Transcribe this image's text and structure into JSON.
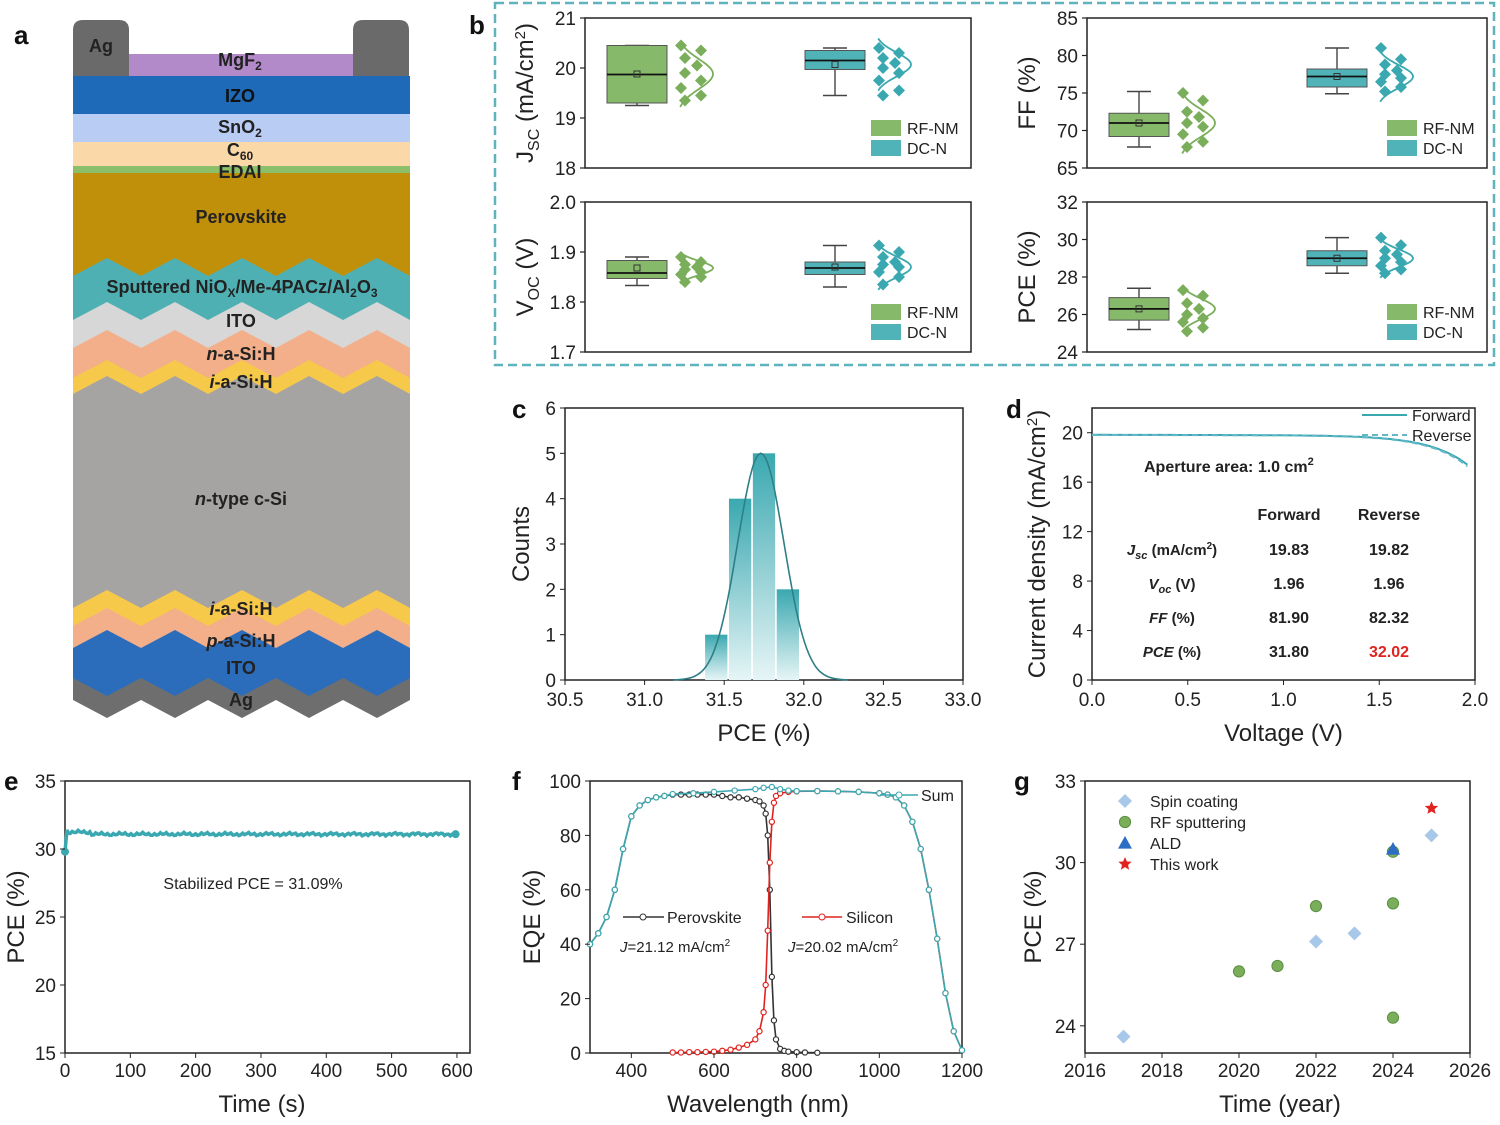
{
  "colors": {
    "teal": "#3aa8b0",
    "teal_box": "#4fb3b8",
    "green": "#7aae5a",
    "green_box": "#86b96a",
    "red": "#e0231e",
    "dash": "#63b7c9",
    "blue": "#2b6cc4",
    "lightblue": "#a8c8ea"
  },
  "panel_letters": {
    "a": "a",
    "b": "b",
    "c": "c",
    "d": "d",
    "e": "e",
    "f": "f",
    "g": "g"
  },
  "stack": {
    "ag_top": "Ag",
    "mgf2": "MgF",
    "mgf2_sub": "2",
    "izo": "IZO",
    "sno2": "SnO",
    "sno2_sub": "2",
    "c60": "C",
    "c60_sub": "60",
    "edai": "EDAI",
    "perovskite": "Perovskite",
    "htl_a": "Sputtered NiO",
    "htl_x": "X",
    "htl_b": "/Me-4PACz/Al",
    "htl_sub": "2",
    "htl_c": "O",
    "htl_sub2": "3",
    "ito_top": "ITO",
    "n_asi_i": "n",
    "n_asi": "-a-Si:H",
    "i_asi_top_i": "i",
    "i_asi_top": "-a-Si:H",
    "csi_i": "n",
    "csi": "-type c-Si",
    "i_asi_bot_i": "i",
    "i_asi_bot": "-a-Si:H",
    "p_asi_i": "p",
    "p_asi": "-a-Si:H",
    "ito_bot": "ITO",
    "ag_bot": "Ag"
  },
  "chart_data": [
    {
      "panel": "b",
      "type": "box",
      "ylabel": "J",
      "ylabel_sub": "SC",
      "ylabel_unit": " (mA/cm",
      "ylabel_sup": "2",
      "ylabel_end": ")",
      "ylim": [
        18,
        21
      ],
      "yticks": [
        "18",
        "19",
        "20",
        "21"
      ],
      "legend": [
        "RF-NM",
        "DC-N"
      ],
      "series": [
        {
          "name": "RF-NM",
          "q1": 19.3,
          "median": 19.87,
          "q3": 20.45,
          "whisker_low": 19.25,
          "whisker_high": 20.45,
          "mean": 19.88,
          "points": [
            20.45,
            20.35,
            20.2,
            20.05,
            19.9,
            19.75,
            19.6,
            19.45,
            19.35
          ]
        },
        {
          "name": "DC-N",
          "q1": 19.97,
          "median": 20.15,
          "q3": 20.35,
          "whisker_low": 19.45,
          "whisker_high": 20.4,
          "mean": 20.07,
          "points": [
            20.4,
            20.3,
            20.2,
            20.1,
            20.0,
            19.9,
            19.75,
            19.55,
            19.45
          ]
        }
      ]
    },
    {
      "panel": "b",
      "type": "box",
      "ylabel": "FF (%)",
      "ylim": [
        65,
        85
      ],
      "yticks": [
        "65",
        "70",
        "75",
        "80",
        "85"
      ],
      "legend": [
        "RF-NM",
        "DC-N"
      ],
      "series": [
        {
          "name": "RF-NM",
          "q1": 69.2,
          "median": 71.0,
          "q3": 72.3,
          "whisker_low": 67.8,
          "whisker_high": 75.2,
          "mean": 71.0,
          "points": [
            75.0,
            74.0,
            72.5,
            71.8,
            71.0,
            70.5,
            69.5,
            68.5,
            67.8
          ]
        },
        {
          "name": "DC-N",
          "q1": 75.8,
          "median": 77.2,
          "q3": 78.2,
          "whisker_low": 74.9,
          "whisker_high": 81.0,
          "mean": 77.2,
          "points": [
            81.0,
            79.5,
            78.8,
            78.0,
            77.5,
            77.0,
            76.5,
            75.8,
            75.2
          ]
        }
      ]
    },
    {
      "panel": "b",
      "type": "box",
      "ylabel": "V",
      "ylabel_sub": "OC",
      "ylabel_unit": " (V)",
      "ylim": [
        1.7,
        2.0
      ],
      "yticks": [
        "1.7",
        "1.8",
        "1.9",
        "2.0"
      ],
      "legend": [
        "RF-NM",
        "DC-N"
      ],
      "series": [
        {
          "name": "RF-NM",
          "q1": 1.847,
          "median": 1.858,
          "q3": 1.883,
          "whisker_low": 1.833,
          "whisker_high": 1.89,
          "mean": 1.868,
          "points": [
            1.89,
            1.88,
            1.875,
            1.87,
            1.865,
            1.86,
            1.855,
            1.85,
            1.84
          ]
        },
        {
          "name": "DC-N",
          "q1": 1.855,
          "median": 1.868,
          "q3": 1.88,
          "whisker_low": 1.83,
          "whisker_high": 1.913,
          "mean": 1.87,
          "points": [
            1.913,
            1.9,
            1.89,
            1.88,
            1.875,
            1.87,
            1.86,
            1.85,
            1.835
          ]
        }
      ]
    },
    {
      "panel": "b",
      "type": "box",
      "ylabel": "PCE (%)",
      "ylim": [
        24,
        32
      ],
      "yticks": [
        "24",
        "26",
        "28",
        "30",
        "32"
      ],
      "legend": [
        "RF-NM",
        "DC-N"
      ],
      "series": [
        {
          "name": "RF-NM",
          "q1": 25.7,
          "median": 26.3,
          "q3": 26.9,
          "whisker_low": 25.2,
          "whisker_high": 27.4,
          "mean": 26.3,
          "points": [
            27.3,
            27.0,
            26.6,
            26.3,
            26.0,
            25.8,
            25.6,
            25.3,
            25.1
          ]
        },
        {
          "name": "DC-N",
          "q1": 28.6,
          "median": 29.0,
          "q3": 29.4,
          "whisker_low": 28.2,
          "whisker_high": 30.1,
          "mean": 29.0,
          "points": [
            30.1,
            29.7,
            29.4,
            29.2,
            29.0,
            28.8,
            28.6,
            28.4,
            28.2
          ]
        }
      ]
    },
    {
      "panel": "c",
      "type": "bar",
      "title": "",
      "xlabel": "PCE (%)",
      "ylabel": "Counts",
      "xlim": [
        30.5,
        33.0
      ],
      "ylim": [
        0,
        6
      ],
      "xticks": [
        "30.5",
        "31.0",
        "31.5",
        "32.0",
        "32.5",
        "33.0"
      ],
      "yticks": [
        "0",
        "1",
        "2",
        "3",
        "4",
        "5",
        "6"
      ],
      "bin_centers": [
        31.45,
        31.6,
        31.75,
        31.9
      ],
      "values": [
        1,
        4,
        5,
        2
      ],
      "bin_width": 0.15,
      "fit_mean": 31.73,
      "fit_sigma": 0.145,
      "fit_peak": 5.0
    },
    {
      "panel": "d",
      "type": "line",
      "xlabel": "Voltage (V)",
      "ylabel": "Current density (mA/cm",
      "ylabel_sup": "2",
      "ylabel_end": ")",
      "xlim": [
        0,
        2.0
      ],
      "ylim": [
        0,
        22
      ],
      "xticks": [
        "0.0",
        "0.5",
        "1.0",
        "1.5",
        "2.0"
      ],
      "yticks": [
        "0",
        "4",
        "8",
        "12",
        "16",
        "20"
      ],
      "legend": [
        "Forward",
        "Reverse"
      ],
      "series": [
        {
          "name": "Forward",
          "jsc": 19.83,
          "voc": 1.96
        },
        {
          "name": "Reverse",
          "jsc": 19.82,
          "voc": 1.96
        }
      ],
      "annotation": "Aperture area: 1.0 cm",
      "annotation_sup": "2",
      "table": {
        "headers": [
          "Forward",
          "Reverse"
        ],
        "rows": [
          {
            "label": "J",
            "sub": "sc",
            "unit": " (mA/cm",
            "sup": "2",
            "end": ")",
            "fwd": "19.83",
            "rev": "19.82"
          },
          {
            "label": "V",
            "sub": "oc",
            "unit": " (V)",
            "sup": "",
            "end": "",
            "fwd": "1.96",
            "rev": "1.96"
          },
          {
            "label": "FF",
            "sub": "",
            "unit": " (%)",
            "sup": "",
            "end": "",
            "fwd": "81.90",
            "rev": "82.32"
          },
          {
            "label": "PCE",
            "sub": "",
            "unit": " (%)",
            "sup": "",
            "end": "",
            "fwd": "31.80",
            "rev": "32.02"
          }
        ]
      }
    },
    {
      "panel": "e",
      "type": "line",
      "xlabel": "Time (s)",
      "ylabel": "PCE (%)",
      "xlim": [
        0,
        620
      ],
      "ylim": [
        15,
        35
      ],
      "xticks": [
        "0",
        "100",
        "200",
        "300",
        "400",
        "500",
        "600"
      ],
      "yticks": [
        "15",
        "20",
        "25",
        "30",
        "35"
      ],
      "annotation": "Stabilized PCE = 31.09%",
      "stabilized": 31.09,
      "start": 29.8,
      "peak": 31.4
    },
    {
      "panel": "f",
      "type": "line",
      "xlabel": "Wavelength (nm)",
      "ylabel": "EQE (%)",
      "xlim": [
        300,
        1200
      ],
      "ylim": [
        0,
        100
      ],
      "xticks": [
        "400",
        "600",
        "800",
        "1000",
        "1200"
      ],
      "yticks": [
        "0",
        "20",
        "40",
        "60",
        "80",
        "100"
      ],
      "legend": [
        "Sum",
        "Perovskite",
        "Silicon"
      ],
      "annotations": [
        {
          "j": "J",
          "text": "=21.12 mA/cm",
          "sup": "2"
        },
        {
          "j": "J",
          "text": "=20.02 mA/cm",
          "sup": "2"
        }
      ],
      "series": [
        {
          "name": "Perovskite",
          "x": [
            300,
            320,
            340,
            360,
            380,
            400,
            420,
            440,
            460,
            480,
            500,
            520,
            540,
            560,
            580,
            600,
            620,
            640,
            660,
            680,
            700,
            710,
            720,
            725,
            730,
            735,
            740,
            745,
            750,
            760,
            770,
            780,
            800,
            820,
            850
          ],
          "y": [
            40,
            44,
            50,
            60,
            75,
            87,
            91,
            93,
            94,
            94.5,
            95,
            95,
            95,
            95,
            95,
            95,
            94.5,
            94,
            94,
            93.5,
            93,
            92.5,
            91,
            88,
            80,
            60,
            28,
            12,
            5,
            1.5,
            0.8,
            0.5,
            0.3,
            0.2,
            0.1
          ]
        },
        {
          "name": "Silicon",
          "x": [
            500,
            520,
            540,
            560,
            580,
            600,
            620,
            640,
            660,
            680,
            700,
            710,
            720,
            725,
            730,
            735,
            740,
            745,
            750,
            760,
            780,
            800,
            850,
            900,
            950,
            1000,
            1020,
            1040,
            1060,
            1080,
            1100,
            1120,
            1140,
            1160,
            1180,
            1200
          ],
          "y": [
            0.2,
            0.2,
            0.3,
            0.3,
            0.4,
            0.5,
            0.8,
            1.2,
            2,
            3,
            5,
            8,
            15,
            25,
            45,
            70,
            85,
            92,
            94.5,
            95.5,
            96,
            96.2,
            96.3,
            96.2,
            96,
            95.5,
            95,
            94,
            91,
            85,
            75,
            60,
            42,
            22,
            8,
            1
          ]
        },
        {
          "name": "Sum",
          "x": [
            300,
            320,
            340,
            360,
            380,
            400,
            420,
            440,
            460,
            480,
            500,
            550,
            600,
            650,
            700,
            720,
            740,
            760,
            780,
            800,
            850,
            900,
            950,
            1000,
            1020,
            1040,
            1060,
            1080,
            1100,
            1120,
            1140,
            1160,
            1180,
            1200
          ],
          "y": [
            40,
            44,
            50,
            60,
            75,
            87,
            91,
            93,
            94,
            94.5,
            95.2,
            95.5,
            96,
            96.5,
            97,
            97.5,
            97.8,
            97,
            96.5,
            96.3,
            96.3,
            96.2,
            96,
            95.5,
            95,
            94,
            91,
            85,
            75,
            60,
            42,
            22,
            8,
            1
          ]
        }
      ]
    },
    {
      "panel": "g",
      "type": "scatter",
      "xlabel": "Time (year)",
      "ylabel": "PCE (%)",
      "xlim": [
        2016,
        2026
      ],
      "ylim": [
        23,
        33
      ],
      "xticks": [
        "2016",
        "2018",
        "2020",
        "2022",
        "2024",
        "2026"
      ],
      "yticks": [
        "24",
        "27",
        "30",
        "33"
      ],
      "legend": [
        "Spin coating",
        "RF sputtering",
        "ALD",
        "This work"
      ],
      "series": [
        {
          "name": "Spin coating",
          "points": [
            [
              2017,
              23.6
            ],
            [
              2022,
              27.1
            ],
            [
              2023,
              27.4
            ],
            [
              2025,
              31.0
            ]
          ]
        },
        {
          "name": "RF sputtering",
          "points": [
            [
              2020,
              26.0
            ],
            [
              2021,
              26.2
            ],
            [
              2022,
              28.4
            ],
            [
              2024,
              28.5
            ],
            [
              2024,
              30.4
            ],
            [
              2024,
              24.3
            ]
          ]
        },
        {
          "name": "ALD",
          "points": [
            [
              2024,
              30.5
            ]
          ]
        },
        {
          "name": "This work",
          "points": [
            [
              2025,
              32.0
            ]
          ]
        }
      ]
    }
  ]
}
